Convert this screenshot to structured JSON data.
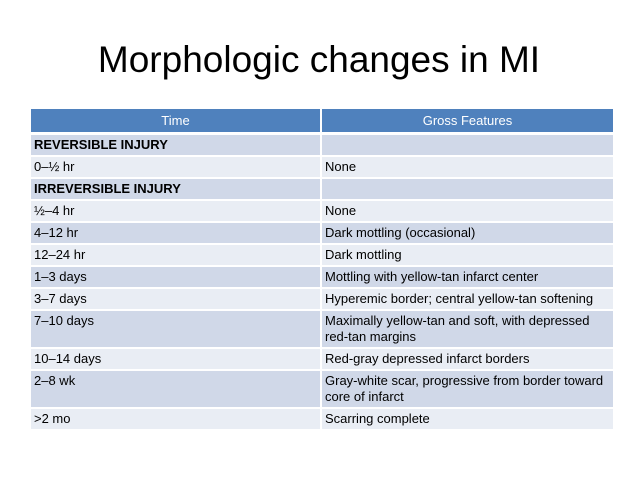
{
  "slide": {
    "title": "Morphologic changes in MI"
  },
  "table": {
    "headers": [
      "Time",
      "Gross Features"
    ],
    "rows": [
      {
        "time": "REVERSIBLE INJURY",
        "gross": "",
        "section": true
      },
      {
        "time": "0–½ hr",
        "gross": "None",
        "section": false
      },
      {
        "time": "IRREVERSIBLE INJURY",
        "gross": "",
        "section": true
      },
      {
        "time": "½–4 hr",
        "gross": "None",
        "section": false
      },
      {
        "time": "4–12 hr",
        "gross": "Dark mottling (occasional)",
        "section": false
      },
      {
        "time": "12–24 hr",
        "gross": "Dark mottling",
        "section": false
      },
      {
        "time": "1–3 days",
        "gross": "Mottling with yellow-tan infarct center",
        "section": false
      },
      {
        "time": "3–7 days",
        "gross": "Hyperemic border; central yellow-tan softening",
        "section": false
      },
      {
        "time": "7–10 days",
        "gross": "Maximally yellow-tan and soft, with depressed red-tan margins",
        "section": false
      },
      {
        "time": "10–14 days",
        "gross": "Red-gray depressed infarct borders",
        "section": false
      },
      {
        "time": "2–8 wk",
        "gross": "Gray-white scar, progressive from border toward core of infarct",
        "section": false
      },
      {
        "time": ">2 mo",
        "gross": "Scarring complete",
        "section": false
      }
    ]
  },
  "colors": {
    "header_bg": "#4f81bd",
    "row_band_dark": "#d0d8e8",
    "row_band_light": "#e9edf4"
  }
}
